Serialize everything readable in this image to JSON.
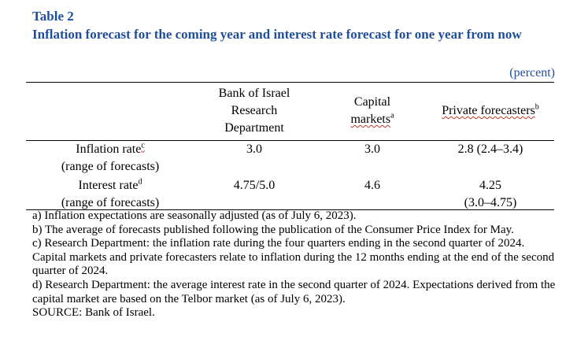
{
  "title": {
    "label": "Table 2",
    "text": "Inflation forecast for the coming year and interest rate forecast for one year from now"
  },
  "unit": "(percent)",
  "columns": {
    "boi": [
      "Bank of Israel",
      "Research",
      "Department"
    ],
    "capital": [
      "Capital",
      "markets"
    ],
    "capital_sup": "a",
    "private": "Private forecasters",
    "private_sup": "b"
  },
  "rows": [
    {
      "label": "Inflation rate",
      "label_sup": "c",
      "sublabel": "(range of forecasts)",
      "boi": "3.0",
      "capital": "3.0",
      "private": "2.8 (2.4–3.4)",
      "private_range": ""
    },
    {
      "label": "Interest rate",
      "label_sup": "d",
      "sublabel": "(range of forecasts)",
      "boi": "4.75/5.0",
      "capital": "4.6",
      "private": "4.25",
      "private_range": "(3.0–4.75)"
    }
  ],
  "notes": [
    "a) Inflation expectations are seasonally adjusted (as of July 6, 2023).",
    "b) The average of forecasts published following the publication of the Consumer Price Index for May.",
    "c) Research Department: the inflation rate during the four quarters ending in the second quarter of 2024. Capital markets and private forecasters relate to inflation during the 12 months ending at the end of the second quarter of 2024.",
    "d) Research Department: the average interest rate in the second quarter of 2024. Expectations derived from the capital market are based on the Telbor market (as of July 6, 2023).",
    "SOURCE: Bank of Israel."
  ],
  "colors": {
    "title": "#1f4e9c",
    "text": "#000000"
  }
}
